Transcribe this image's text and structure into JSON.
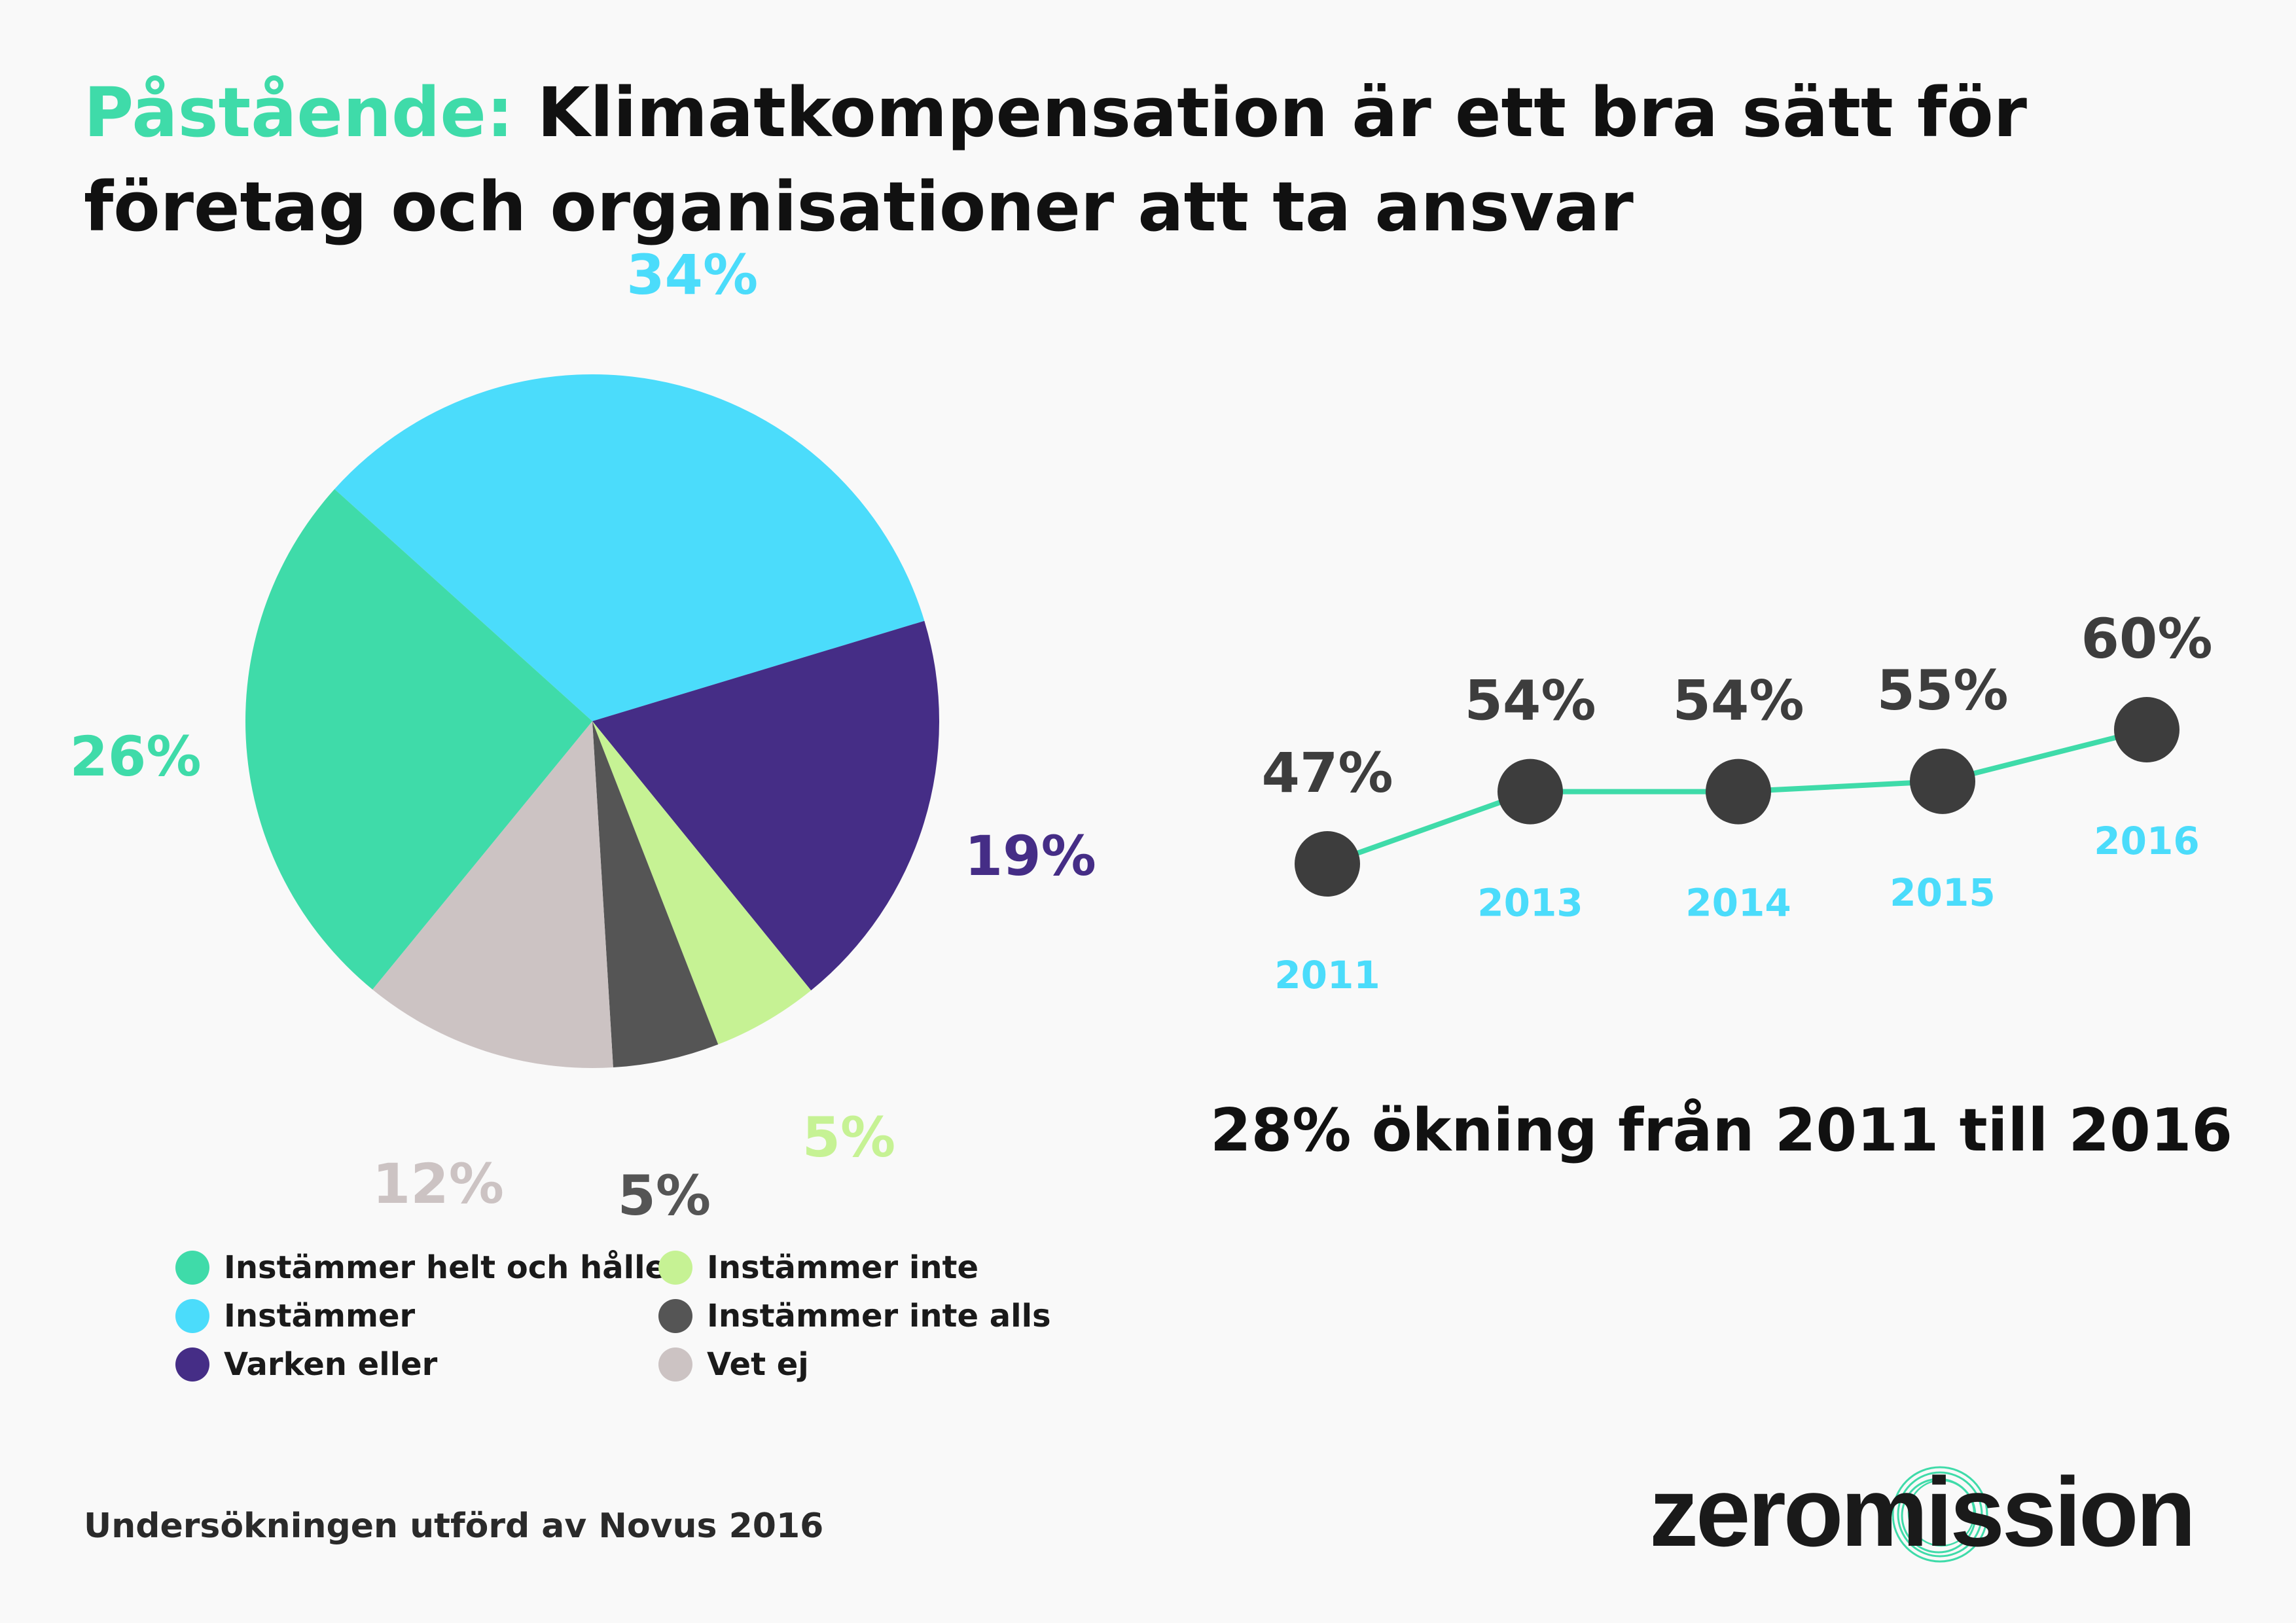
{
  "title": {
    "prefix": "Påstående:",
    "text": "Klimatkompensation är ett bra sätt för företag och organisationer att ta ansvar"
  },
  "colors": {
    "instammer_helt": "#3fdba9",
    "instammer": "#4bdcfb",
    "varken_eller": "#452d86",
    "instammer_inte": "#c6f294",
    "instammer_inte_alls": "#555555",
    "vet_ej": "#ccc3c3",
    "line": "#3fdba9",
    "marker": "#3d3d3d",
    "year_label": "#4bdcfb",
    "value_label": "#3d3d3d"
  },
  "chart_data": [
    {
      "type": "pie",
      "slices": [
        {
          "label": "Instämmer helt och hållet",
          "value": 26,
          "display": "26%",
          "color": "#3fdba9"
        },
        {
          "label": "Instämmer",
          "value": 34,
          "display": "34%",
          "color": "#4bdcfb"
        },
        {
          "label": "Varken eller",
          "value": 19,
          "display": "19%",
          "color": "#452d86"
        },
        {
          "label": "Instämmer inte",
          "value": 5,
          "display": "5%",
          "color": "#c6f294"
        },
        {
          "label": "Instämmer inte alls",
          "value": 5,
          "display": "5%",
          "color": "#555555"
        },
        {
          "label": "Vet ej",
          "value": 12,
          "display": "12%",
          "color": "#ccc3c3"
        }
      ]
    },
    {
      "type": "line",
      "x": [
        "2011",
        "2013",
        "2014",
        "2015",
        "2016"
      ],
      "values": [
        47,
        54,
        54,
        55,
        60
      ],
      "labels": [
        "47%",
        "54%",
        "54%",
        "55%",
        "60%"
      ],
      "annotation": "28% ökning från 2011 till 2016"
    }
  ],
  "legend": [
    {
      "label": "Instämmer helt och hållet",
      "color": "#3fdba9"
    },
    {
      "label": "Instämmer inte",
      "color": "#c6f294"
    },
    {
      "label": "Instämmer",
      "color": "#4bdcfb"
    },
    {
      "label": "Instämmer inte alls",
      "color": "#555555"
    },
    {
      "label": "Varken eller",
      "color": "#452d86"
    },
    {
      "label": "Vet ej",
      "color": "#ccc3c3"
    }
  ],
  "footnote": "Undersökningen utförd av Novus 2016",
  "logo": {
    "text": "zeromission"
  }
}
